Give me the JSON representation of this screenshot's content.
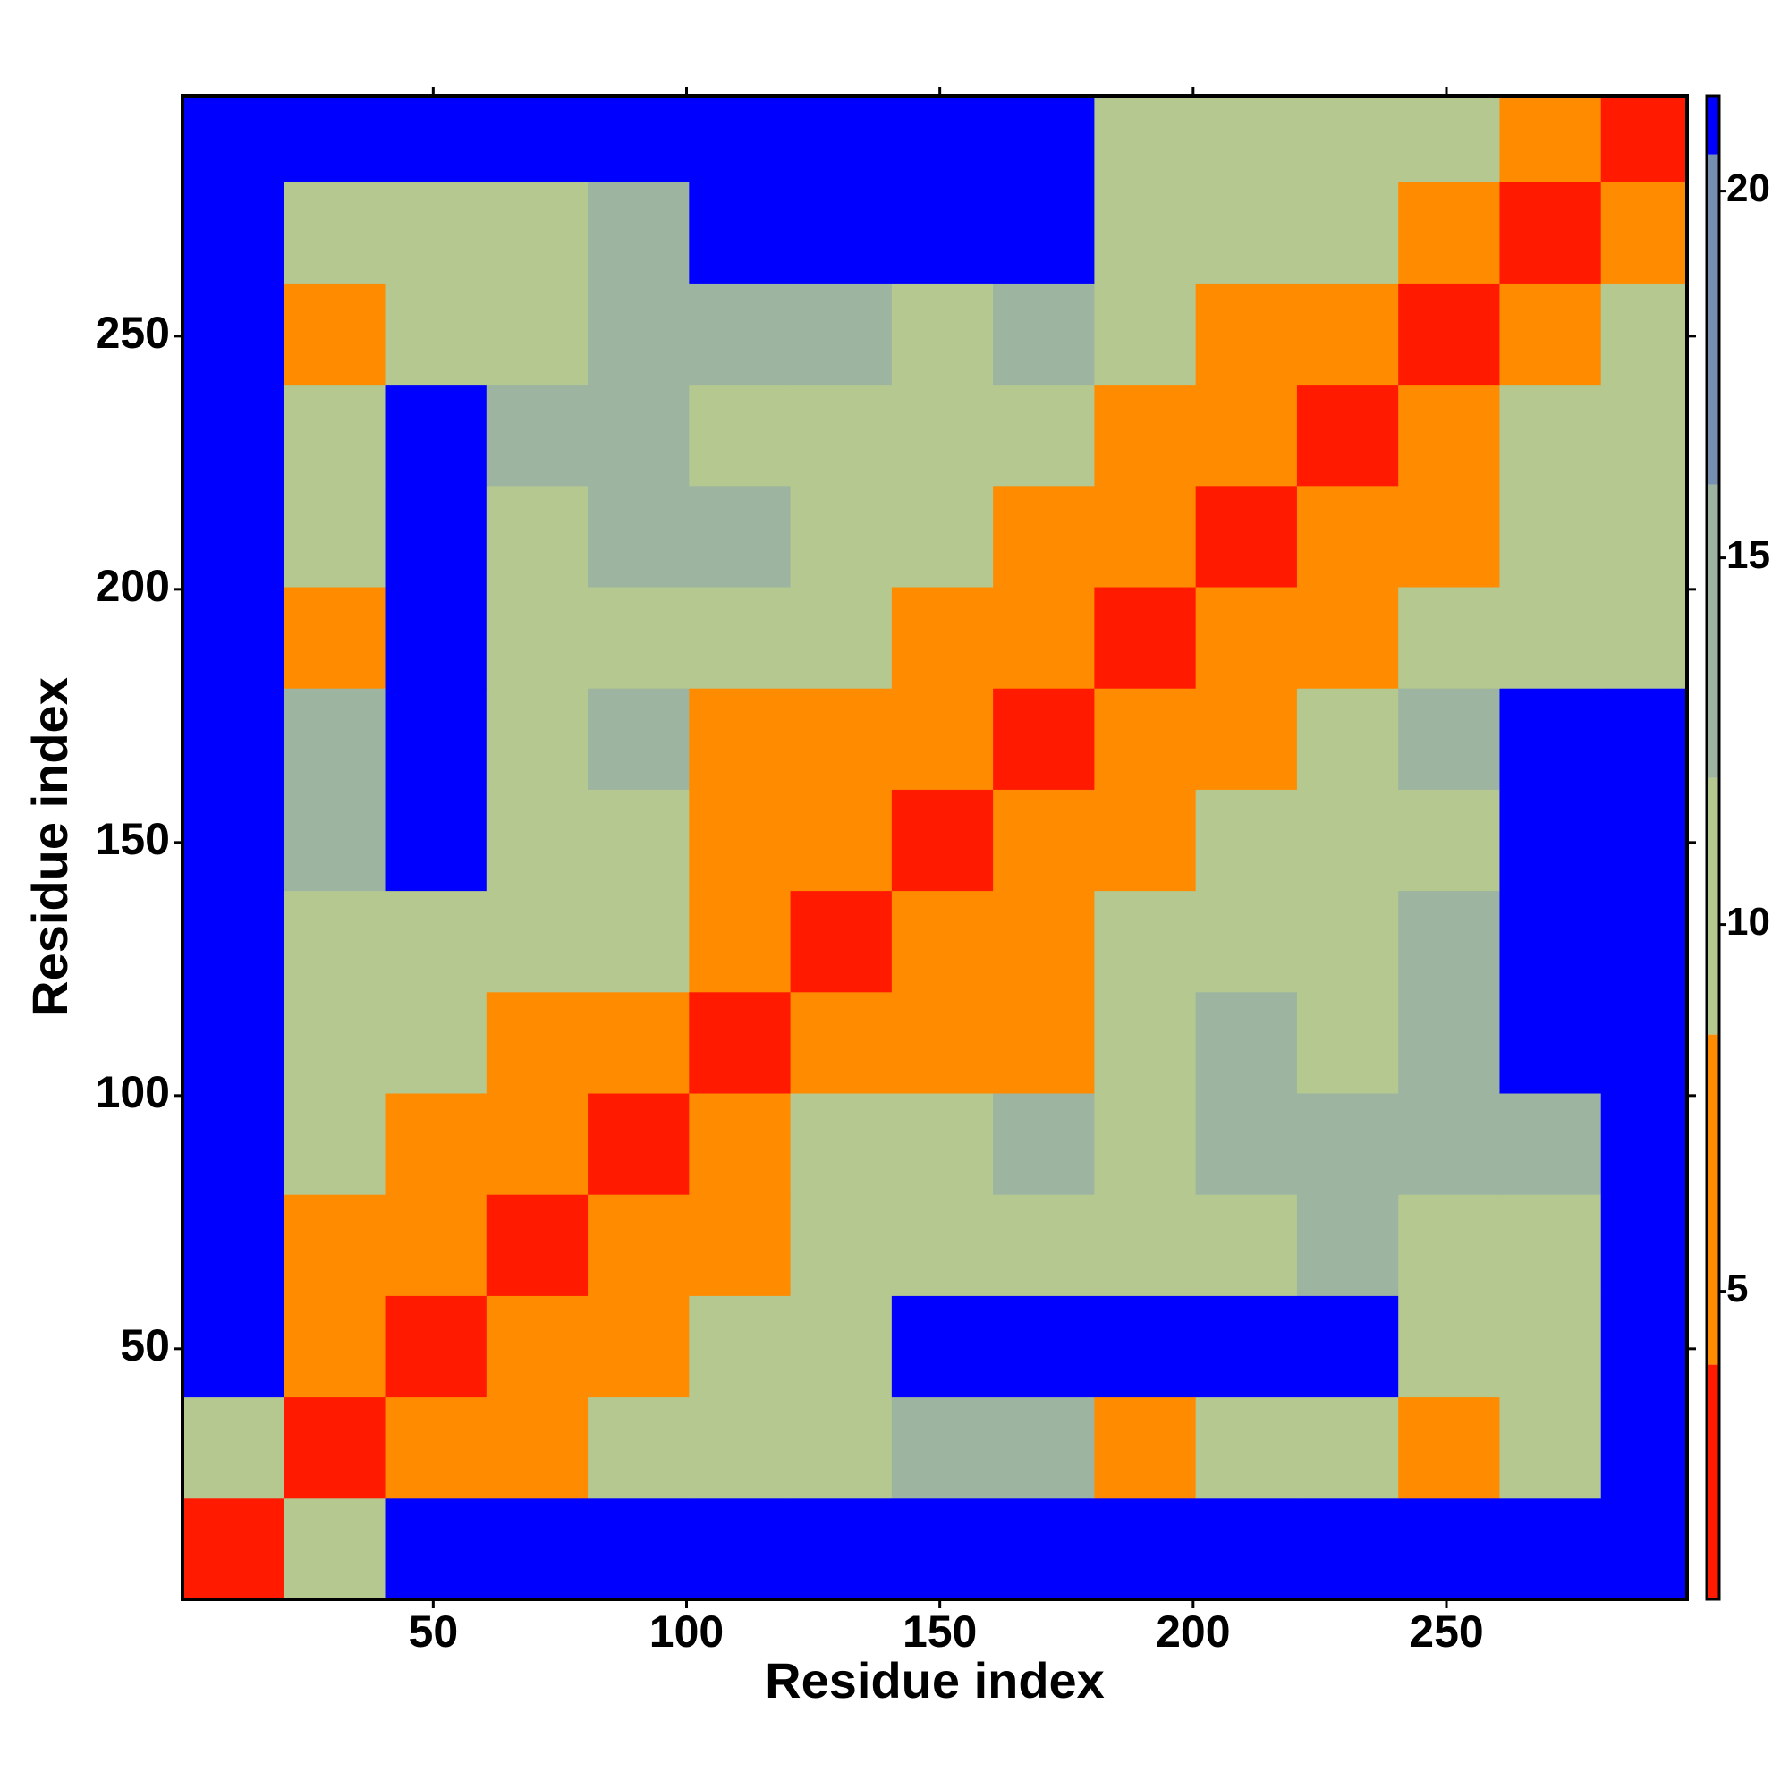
{
  "chart_data": {
    "type": "heatmap",
    "xlabel": "Residue index",
    "ylabel": "Residue index",
    "xlim": [
      0.5,
      297.5
    ],
    "ylim": [
      0.5,
      297.5
    ],
    "xticks": [
      50,
      100,
      150,
      200,
      250
    ],
    "yticks": [
      50,
      100,
      150,
      200,
      250
    ],
    "bins": [
      0.5,
      20.5,
      40.5,
      60.5,
      80.5,
      100.5,
      120.5,
      140.5,
      160.5,
      180.5,
      200.5,
      220.5,
      240.5,
      260.5,
      280.5,
      297.5
    ],
    "z": [
      [
        2,
        9,
        21,
        21,
        21,
        21,
        21,
        21,
        21,
        21,
        21,
        21,
        21,
        21,
        21
      ],
      [
        9,
        2,
        7,
        8,
        10,
        12,
        12,
        14,
        13,
        8,
        12,
        10,
        7,
        11,
        21
      ],
      [
        21,
        7,
        2,
        7,
        8,
        9,
        9,
        21,
        21,
        21,
        21,
        21,
        9,
        10,
        21
      ],
      [
        21,
        8,
        7,
        2,
        6,
        7,
        9,
        12,
        11,
        12,
        12,
        13,
        10,
        12,
        21
      ],
      [
        21,
        10,
        8,
        6,
        2,
        7,
        11,
        9,
        13,
        12,
        13,
        14,
        13,
        13,
        21
      ],
      [
        21,
        12,
        9,
        7,
        7,
        2,
        6,
        7,
        8,
        11,
        13,
        12,
        14,
        21,
        21
      ],
      [
        21,
        12,
        9,
        9,
        11,
        6,
        2,
        6,
        7,
        9,
        10,
        12,
        13,
        21,
        21
      ],
      [
        21,
        14,
        21,
        12,
        9,
        7,
        6,
        2,
        7,
        8,
        9,
        12,
        12,
        21,
        21
      ],
      [
        21,
        13,
        21,
        11,
        13,
        8,
        7,
        7,
        2,
        6,
        8,
        11,
        13,
        21,
        21
      ],
      [
        21,
        8,
        21,
        12,
        12,
        11,
        9,
        8,
        6,
        2,
        6,
        8,
        9,
        11,
        12
      ],
      [
        21,
        12,
        21,
        12,
        13,
        13,
        10,
        9,
        8,
        6,
        2,
        7,
        8,
        11,
        12
      ],
      [
        21,
        10,
        21,
        13,
        14,
        12,
        12,
        12,
        11,
        8,
        7,
        2,
        7,
        10,
        11
      ],
      [
        21,
        7,
        9,
        10,
        13,
        14,
        13,
        12,
        13,
        9,
        8,
        7,
        2,
        7,
        9
      ],
      [
        21,
        11,
        10,
        12,
        13,
        21,
        21,
        21,
        21,
        11,
        11,
        10,
        7,
        2,
        6
      ],
      [
        21,
        21,
        21,
        21,
        21,
        21,
        21,
        21,
        21,
        12,
        12,
        11,
        9,
        6,
        2
      ]
    ],
    "zlim": [
      0.8,
      21.3
    ],
    "zticks": [
      5,
      10,
      15,
      20
    ],
    "color_breaks": [
      4,
      8.5,
      12,
      16,
      20.5
    ],
    "colors": [
      "#ff1a00",
      "#ff8c00",
      "#b4c890",
      "#9cb4a0",
      "#7590b0",
      "#0000ff"
    ]
  }
}
